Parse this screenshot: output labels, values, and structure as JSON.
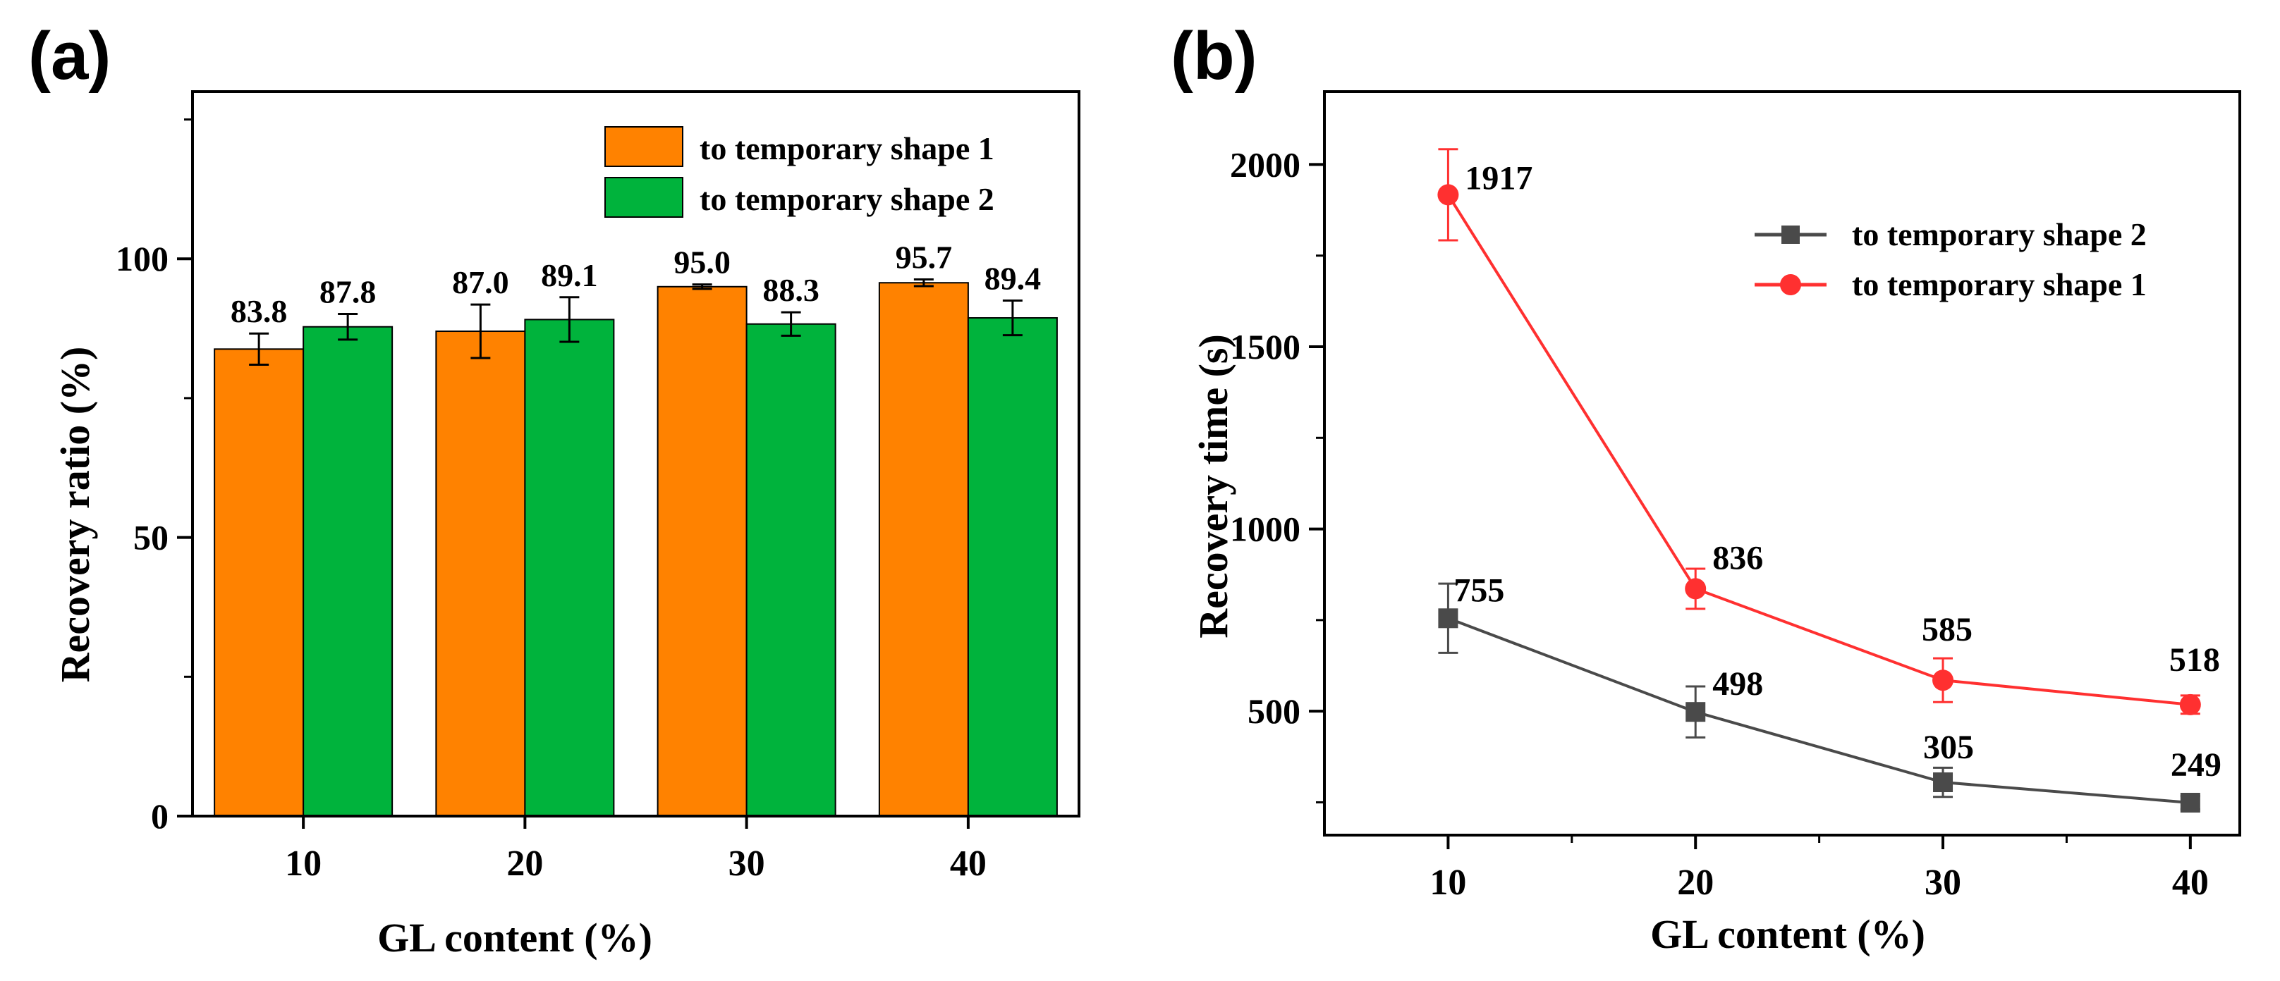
{
  "panels": {
    "a": {
      "label": "(a)"
    },
    "b": {
      "label": "(b)"
    }
  },
  "colors": {
    "shape1_bar": "#ff8200",
    "shape2_bar": "#00b33c",
    "shape1_line": "#ff3030",
    "shape2_line": "#4a4a4a",
    "axis": "#000000"
  },
  "chart_data": [
    {
      "id": "a",
      "type": "bar",
      "categories": [
        "10",
        "20",
        "30",
        "40"
      ],
      "series": [
        {
          "name": "to temporary shape 1",
          "values": [
            83.8,
            87.0,
            95.0,
            95.7
          ],
          "errors": [
            2.8,
            4.8,
            0.4,
            0.6
          ]
        },
        {
          "name": "to temporary shape 2",
          "values": [
            87.8,
            89.1,
            88.3,
            89.4
          ],
          "errors": [
            2.3,
            4.0,
            2.1,
            3.1
          ]
        }
      ],
      "value_labels": [
        [
          "83.8",
          "87.0",
          "95.0",
          "95.7"
        ],
        [
          "87.8",
          "89.1",
          "88.3",
          "89.4"
        ]
      ],
      "xlabel": "GL content (%)",
      "ylabel": "Recovery ratio (%)",
      "ylim": [
        0,
        130
      ],
      "yticks": [
        "0",
        "50",
        "100"
      ],
      "legend_position": "top-right"
    },
    {
      "id": "b",
      "type": "line",
      "x": [
        10,
        20,
        30,
        40
      ],
      "xticks": [
        "10",
        "20",
        "30",
        "40"
      ],
      "series": [
        {
          "name": "to temporary shape 2",
          "marker": "square",
          "values": [
            755,
            498,
            305,
            249
          ],
          "errors": [
            95,
            70,
            40,
            18
          ],
          "labels": [
            "755",
            "498",
            "305",
            "249"
          ]
        },
        {
          "name": "to temporary shape 1",
          "marker": "circle",
          "values": [
            1917,
            836,
            585,
            518
          ],
          "errors": [
            125,
            55,
            60,
            25
          ],
          "labels": [
            "1917",
            "836",
            "585",
            "518"
          ]
        }
      ],
      "xlabel": "GL content (%)",
      "ylabel": "Recovery time (s)",
      "xlim": [
        5,
        42
      ],
      "ylim": [
        160,
        2200
      ],
      "yticks": [
        "500",
        "1000",
        "1500",
        "2000"
      ],
      "legend_position": "top-right"
    }
  ]
}
